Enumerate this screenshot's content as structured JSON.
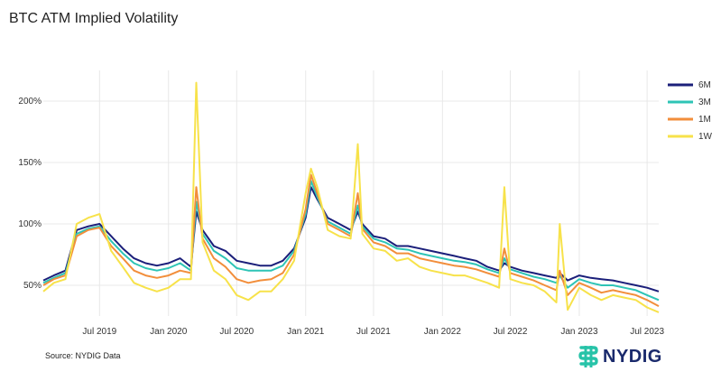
{
  "title": "BTC ATM Implied Volatility",
  "source": "Source: NYDIG Data",
  "logo_text": "NYDIG",
  "colors": {
    "6M": "#1b1f7a",
    "3M": "#2ec4b6",
    "1M": "#f28e3b",
    "1W": "#f7e24a",
    "grid": "#e8e8e8",
    "logo_mark": "#27c3a8",
    "logo_text": "#1a2a6c"
  },
  "chart_data": {
    "type": "line",
    "title": "BTC ATM Implied Volatility",
    "xlabel": "",
    "ylabel": "",
    "x_ticks": [
      "Jul 2019",
      "Jan 2020",
      "Jul 2020",
      "Jan 2021",
      "Jul 2021",
      "Jan 2022",
      "Jul 2022",
      "Jan 2023",
      "Jul 2023"
    ],
    "y_ticks": [
      "50%",
      "100%",
      "150%",
      "200%"
    ],
    "ylim": [
      25,
      225
    ],
    "xlim": [
      "2019-02-01",
      "2023-08-01"
    ],
    "grid": true,
    "legend_position": "top-right",
    "x": [
      "2019-02-01",
      "2019-03-01",
      "2019-04-01",
      "2019-05-01",
      "2019-06-01",
      "2019-07-01",
      "2019-08-01",
      "2019-09-01",
      "2019-10-01",
      "2019-11-01",
      "2019-12-01",
      "2020-01-01",
      "2020-02-01",
      "2020-03-01",
      "2020-03-15",
      "2020-04-01",
      "2020-05-01",
      "2020-06-01",
      "2020-07-01",
      "2020-08-01",
      "2020-09-01",
      "2020-10-01",
      "2020-11-01",
      "2020-12-01",
      "2021-01-01",
      "2021-01-15",
      "2021-02-01",
      "2021-03-01",
      "2021-04-01",
      "2021-05-01",
      "2021-05-20",
      "2021-06-01",
      "2021-07-01",
      "2021-08-01",
      "2021-09-01",
      "2021-10-01",
      "2021-11-01",
      "2021-12-01",
      "2022-01-01",
      "2022-02-01",
      "2022-03-01",
      "2022-04-01",
      "2022-05-01",
      "2022-06-01",
      "2022-06-15",
      "2022-07-01",
      "2022-08-01",
      "2022-09-01",
      "2022-10-01",
      "2022-11-01",
      "2022-11-10",
      "2022-12-01",
      "2023-01-01",
      "2023-02-01",
      "2023-03-01",
      "2023-04-01",
      "2023-05-01",
      "2023-06-01",
      "2023-07-01",
      "2023-08-01"
    ],
    "series": [
      {
        "name": "6M",
        "values": [
          54,
          58,
          62,
          95,
          98,
          100,
          90,
          80,
          72,
          68,
          66,
          68,
          72,
          65,
          110,
          95,
          82,
          78,
          70,
          68,
          66,
          66,
          70,
          80,
          105,
          130,
          120,
          105,
          100,
          95,
          110,
          100,
          90,
          88,
          82,
          82,
          80,
          78,
          76,
          74,
          72,
          70,
          65,
          62,
          68,
          65,
          62,
          60,
          58,
          56,
          60,
          54,
          58,
          56,
          55,
          54,
          52,
          50,
          48,
          45
        ]
      },
      {
        "name": "3M",
        "values": [
          52,
          56,
          60,
          92,
          96,
          98,
          86,
          76,
          68,
          64,
          62,
          64,
          68,
          62,
          118,
          92,
          78,
          72,
          64,
          62,
          62,
          62,
          66,
          78,
          108,
          135,
          122,
          102,
          97,
          92,
          115,
          98,
          88,
          85,
          80,
          79,
          76,
          74,
          72,
          70,
          69,
          67,
          63,
          60,
          72,
          63,
          60,
          57,
          55,
          52,
          58,
          48,
          55,
          52,
          50,
          50,
          48,
          46,
          42,
          38
        ]
      },
      {
        "name": "1M",
        "values": [
          50,
          55,
          58,
          90,
          95,
          97,
          82,
          72,
          62,
          58,
          56,
          58,
          62,
          60,
          130,
          88,
          72,
          65,
          55,
          52,
          54,
          55,
          60,
          75,
          112,
          140,
          125,
          100,
          95,
          90,
          125,
          96,
          85,
          82,
          76,
          76,
          72,
          70,
          68,
          66,
          65,
          63,
          60,
          57,
          80,
          60,
          57,
          54,
          50,
          46,
          62,
          42,
          52,
          48,
          44,
          46,
          44,
          42,
          38,
          33
        ]
      },
      {
        "name": "1W",
        "values": [
          45,
          52,
          55,
          100,
          105,
          108,
          78,
          65,
          52,
          48,
          45,
          48,
          55,
          55,
          215,
          85,
          62,
          55,
          42,
          38,
          45,
          45,
          55,
          70,
          125,
          145,
          130,
          95,
          90,
          88,
          165,
          92,
          80,
          78,
          70,
          72,
          65,
          62,
          60,
          58,
          58,
          55,
          52,
          48,
          130,
          55,
          52,
          50,
          45,
          36,
          100,
          30,
          48,
          42,
          38,
          42,
          40,
          38,
          32,
          28
        ]
      }
    ]
  }
}
